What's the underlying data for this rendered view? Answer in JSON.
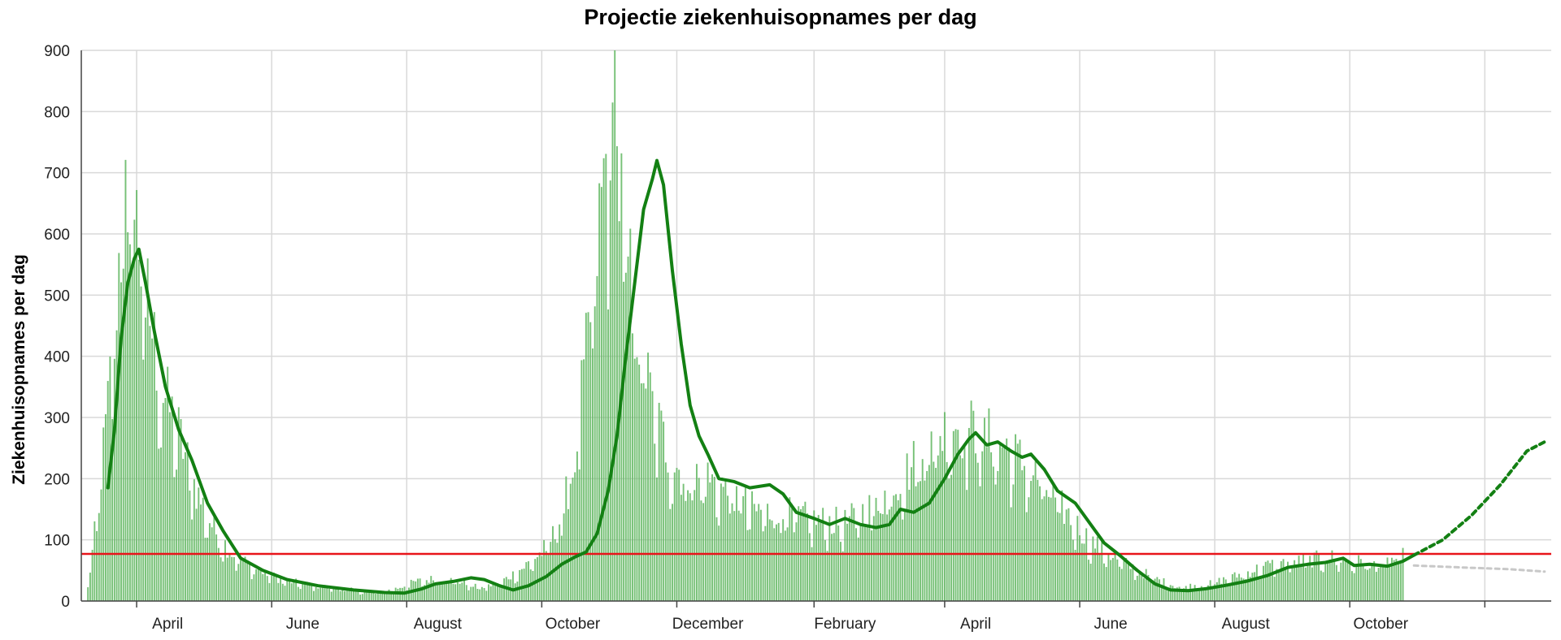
{
  "chart_data": {
    "type": "bar",
    "title": "Projectie ziekenhuisopnames per dag",
    "xlabel": "",
    "ylabel": "Ziekenhuisopnames per dag",
    "ylim": [
      0,
      900
    ],
    "xlim": [
      "2020-03-07",
      "2021-12-31"
    ],
    "y_ticks": [
      0,
      100,
      200,
      300,
      400,
      500,
      600,
      700,
      800,
      900
    ],
    "x_tick_labels": [
      {
        "date": "2020-04-01",
        "label": "April"
      },
      {
        "date": "2020-06-01",
        "label": "June"
      },
      {
        "date": "2020-08-01",
        "label": "August"
      },
      {
        "date": "2020-10-01",
        "label": "October"
      },
      {
        "date": "2020-12-01",
        "label": "December"
      },
      {
        "date": "2021-02-01",
        "label": "February"
      },
      {
        "date": "2021-04-01",
        "label": "April"
      },
      {
        "date": "2021-06-01",
        "label": "June"
      },
      {
        "date": "2021-08-01",
        "label": "August"
      },
      {
        "date": "2021-10-01",
        "label": "October"
      }
    ],
    "grid": true,
    "threshold_line": {
      "value": 77,
      "color": "#e8141a"
    },
    "colors": {
      "bars": "#5fb65f",
      "trend": "#138013",
      "projection": "#138013",
      "alt_projection": "#c8c8c8"
    },
    "series": [
      {
        "type": "bar",
        "x_start": "2020-03-10",
        "x_end": "2021-10-25",
        "anchors": [
          [
            "2020-03-10",
            20
          ],
          [
            "2020-03-14",
            130
          ],
          [
            "2020-03-19",
            300
          ],
          [
            "2020-03-24",
            520
          ],
          [
            "2020-03-28",
            640
          ],
          [
            "2020-04-01",
            580
          ],
          [
            "2020-04-06",
            460
          ],
          [
            "2020-04-12",
            330
          ],
          [
            "2020-04-20",
            260
          ],
          [
            "2020-04-28",
            170
          ],
          [
            "2020-05-06",
            110
          ],
          [
            "2020-05-15",
            70
          ],
          [
            "2020-05-25",
            50
          ],
          [
            "2020-06-05",
            33
          ],
          [
            "2020-06-20",
            24
          ],
          [
            "2020-07-05",
            18
          ],
          [
            "2020-07-20",
            13
          ],
          [
            "2020-07-28",
            20
          ],
          [
            "2020-08-05",
            30
          ],
          [
            "2020-08-15",
            35
          ],
          [
            "2020-08-25",
            30
          ],
          [
            "2020-09-03",
            20
          ],
          [
            "2020-09-12",
            28
          ],
          [
            "2020-09-22",
            50
          ],
          [
            "2020-10-01",
            75
          ],
          [
            "2020-10-08",
            110
          ],
          [
            "2020-10-15",
            200
          ],
          [
            "2020-10-22",
            400
          ],
          [
            "2020-10-29",
            650
          ],
          [
            "2020-11-01",
            720
          ],
          [
            "2020-11-05",
            640
          ],
          [
            "2020-11-12",
            440
          ],
          [
            "2020-11-20",
            300
          ],
          [
            "2020-11-28",
            220
          ],
          [
            "2020-12-05",
            190
          ],
          [
            "2020-12-15",
            190
          ],
          [
            "2020-12-25",
            165
          ],
          [
            "2021-01-05",
            140
          ],
          [
            "2021-01-20",
            135
          ],
          [
            "2021-02-01",
            125
          ],
          [
            "2021-02-15",
            120
          ],
          [
            "2021-03-01",
            150
          ],
          [
            "2021-03-15",
            200
          ],
          [
            "2021-03-28",
            250
          ],
          [
            "2021-04-05",
            275
          ],
          [
            "2021-04-15",
            260
          ],
          [
            "2021-04-28",
            240
          ],
          [
            "2021-05-10",
            200
          ],
          [
            "2021-05-25",
            140
          ],
          [
            "2021-06-05",
            95
          ],
          [
            "2021-06-20",
            60
          ],
          [
            "2021-07-05",
            35
          ],
          [
            "2021-07-15",
            22
          ],
          [
            "2021-07-28",
            25
          ],
          [
            "2021-08-10",
            38
          ],
          [
            "2021-08-25",
            55
          ],
          [
            "2021-09-10",
            62
          ],
          [
            "2021-09-22",
            68
          ],
          [
            "2021-10-05",
            60
          ],
          [
            "2021-10-15",
            55
          ],
          [
            "2021-10-25",
            70
          ]
        ]
      },
      {
        "type": "line",
        "points": [
          [
            "2020-03-19",
            185
          ],
          [
            "2020-03-22",
            280
          ],
          [
            "2020-03-25",
            430
          ],
          [
            "2020-03-28",
            520
          ],
          [
            "2020-03-31",
            560
          ],
          [
            "2020-04-02",
            575
          ],
          [
            "2020-04-05",
            520
          ],
          [
            "2020-04-09",
            440
          ],
          [
            "2020-04-14",
            350
          ],
          [
            "2020-04-20",
            280
          ],
          [
            "2020-04-26",
            230
          ],
          [
            "2020-05-03",
            160
          ],
          [
            "2020-05-10",
            115
          ],
          [
            "2020-05-18",
            70
          ],
          [
            "2020-05-28",
            50
          ],
          [
            "2020-06-08",
            35
          ],
          [
            "2020-06-22",
            25
          ],
          [
            "2020-07-08",
            18
          ],
          [
            "2020-07-22",
            14
          ],
          [
            "2020-07-31",
            13
          ],
          [
            "2020-08-08",
            20
          ],
          [
            "2020-08-14",
            28
          ],
          [
            "2020-08-22",
            32
          ],
          [
            "2020-08-30",
            38
          ],
          [
            "2020-09-05",
            35
          ],
          [
            "2020-09-12",
            25
          ],
          [
            "2020-09-18",
            18
          ],
          [
            "2020-09-25",
            25
          ],
          [
            "2020-10-03",
            40
          ],
          [
            "2020-10-10",
            60
          ],
          [
            "2020-10-16",
            72
          ],
          [
            "2020-10-21",
            80
          ],
          [
            "2020-10-26",
            110
          ],
          [
            "2020-10-31",
            180
          ],
          [
            "2020-11-04",
            270
          ],
          [
            "2020-11-08",
            400
          ],
          [
            "2020-11-12",
            520
          ],
          [
            "2020-11-16",
            640
          ],
          [
            "2020-11-20",
            690
          ],
          [
            "2020-11-22",
            720
          ],
          [
            "2020-11-25",
            680
          ],
          [
            "2020-11-29",
            540
          ],
          [
            "2020-12-03",
            420
          ],
          [
            "2020-12-07",
            320
          ],
          [
            "2020-12-11",
            270
          ],
          [
            "2020-12-15",
            240
          ],
          [
            "2020-12-20",
            200
          ],
          [
            "2020-12-27",
            195
          ],
          [
            "2021-01-03",
            185
          ],
          [
            "2021-01-12",
            190
          ],
          [
            "2021-01-18",
            175
          ],
          [
            "2021-01-24",
            145
          ],
          [
            "2021-02-01",
            135
          ],
          [
            "2021-02-08",
            125
          ],
          [
            "2021-02-15",
            135
          ],
          [
            "2021-02-22",
            125
          ],
          [
            "2021-03-01",
            120
          ],
          [
            "2021-03-07",
            125
          ],
          [
            "2021-03-12",
            150
          ],
          [
            "2021-03-18",
            145
          ],
          [
            "2021-03-25",
            160
          ],
          [
            "2021-04-01",
            200
          ],
          [
            "2021-04-07",
            240
          ],
          [
            "2021-04-12",
            265
          ],
          [
            "2021-04-15",
            275
          ],
          [
            "2021-04-20",
            255
          ],
          [
            "2021-04-25",
            260
          ],
          [
            "2021-05-01",
            245
          ],
          [
            "2021-05-06",
            235
          ],
          [
            "2021-05-10",
            240
          ],
          [
            "2021-05-16",
            215
          ],
          [
            "2021-05-22",
            180
          ],
          [
            "2021-05-30",
            160
          ],
          [
            "2021-06-06",
            125
          ],
          [
            "2021-06-12",
            95
          ],
          [
            "2021-06-19",
            75
          ],
          [
            "2021-06-27",
            50
          ],
          [
            "2021-07-05",
            28
          ],
          [
            "2021-07-12",
            18
          ],
          [
            "2021-07-20",
            17
          ],
          [
            "2021-07-28",
            20
          ],
          [
            "2021-08-05",
            25
          ],
          [
            "2021-08-15",
            32
          ],
          [
            "2021-08-25",
            42
          ],
          [
            "2021-09-03",
            55
          ],
          [
            "2021-09-12",
            60
          ],
          [
            "2021-09-20",
            63
          ],
          [
            "2021-09-28",
            70
          ],
          [
            "2021-10-03",
            58
          ],
          [
            "2021-10-10",
            60
          ],
          [
            "2021-10-18",
            57
          ],
          [
            "2021-10-25",
            65
          ],
          [
            "2021-10-30",
            75
          ]
        ]
      },
      {
        "type": "line",
        "style": "dotted",
        "points": [
          [
            "2021-10-30",
            75
          ],
          [
            "2021-11-12",
            100
          ],
          [
            "2021-11-25",
            140
          ],
          [
            "2021-12-08",
            190
          ],
          [
            "2021-12-20",
            245
          ],
          [
            "2021-12-28",
            260
          ]
        ]
      },
      {
        "type": "line",
        "style": "dotted",
        "points": [
          [
            "2021-10-30",
            58
          ],
          [
            "2021-11-20",
            55
          ],
          [
            "2021-12-12",
            52
          ],
          [
            "2021-12-28",
            48
          ]
        ]
      }
    ]
  }
}
